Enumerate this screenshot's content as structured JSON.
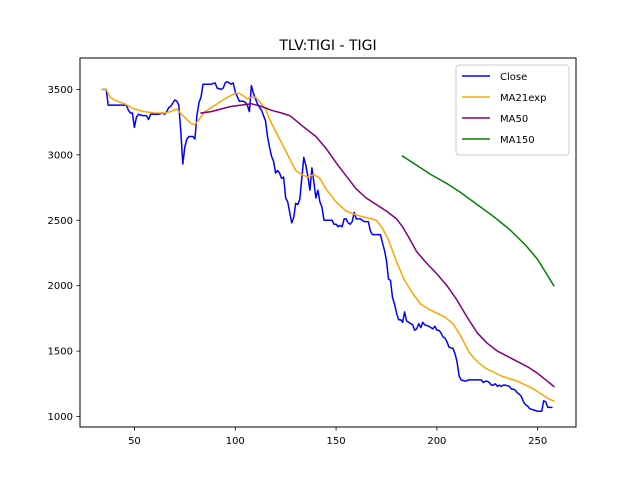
{
  "chart_data": {
    "type": "line",
    "title": "TLV:TIGI - TIGI",
    "xlabel": "",
    "ylabel": "",
    "xlim": [
      23,
      269
    ],
    "ylim": [
      920,
      3740
    ],
    "xticks": [
      50,
      100,
      150,
      200,
      250
    ],
    "yticks": [
      1000,
      1500,
      2000,
      2500,
      3000,
      3500
    ],
    "grid": false,
    "legend_position": "top-right",
    "series": [
      {
        "name": "Close",
        "color": "#0000ff",
        "points": [
          [
            34,
            3500
          ],
          [
            36,
            3500
          ],
          [
            37,
            3380
          ],
          [
            40,
            3380
          ],
          [
            42,
            3380
          ],
          [
            44,
            3380
          ],
          [
            46,
            3380
          ],
          [
            47,
            3340
          ],
          [
            48,
            3320
          ],
          [
            49,
            3320
          ],
          [
            50,
            3210
          ],
          [
            51,
            3290
          ],
          [
            52,
            3310
          ],
          [
            54,
            3300
          ],
          [
            55,
            3300
          ],
          [
            56,
            3300
          ],
          [
            57,
            3270
          ],
          [
            58,
            3310
          ],
          [
            60,
            3310
          ],
          [
            62,
            3310
          ],
          [
            64,
            3320
          ],
          [
            65,
            3310
          ],
          [
            66,
            3330
          ],
          [
            67,
            3360
          ],
          [
            68,
            3370
          ],
          [
            70,
            3420
          ],
          [
            71,
            3410
          ],
          [
            72,
            3380
          ],
          [
            73,
            3180
          ],
          [
            74,
            2930
          ],
          [
            75,
            3060
          ],
          [
            76,
            3120
          ],
          [
            77,
            3140
          ],
          [
            79,
            3140
          ],
          [
            80,
            3120
          ],
          [
            81,
            3300
          ],
          [
            82,
            3400
          ],
          [
            83,
            3440
          ],
          [
            84,
            3540
          ],
          [
            86,
            3540
          ],
          [
            88,
            3540
          ],
          [
            90,
            3550
          ],
          [
            91,
            3510
          ],
          [
            93,
            3500
          ],
          [
            94,
            3510
          ],
          [
            95,
            3550
          ],
          [
            96,
            3560
          ],
          [
            98,
            3540
          ],
          [
            99,
            3550
          ],
          [
            100,
            3480
          ],
          [
            102,
            3410
          ],
          [
            104,
            3410
          ],
          [
            105,
            3400
          ],
          [
            106,
            3380
          ],
          [
            107,
            3330
          ],
          [
            108,
            3530
          ],
          [
            109,
            3470
          ],
          [
            110,
            3430
          ],
          [
            111,
            3390
          ],
          [
            113,
            3340
          ],
          [
            115,
            3260
          ],
          [
            116,
            3140
          ],
          [
            117,
            3060
          ],
          [
            118,
            2990
          ],
          [
            119,
            2950
          ],
          [
            120,
            2860
          ],
          [
            121,
            2880
          ],
          [
            122,
            2860
          ],
          [
            123,
            2820
          ],
          [
            124,
            2830
          ],
          [
            125,
            2670
          ],
          [
            126,
            2640
          ],
          [
            127,
            2560
          ],
          [
            128,
            2480
          ],
          [
            129,
            2520
          ],
          [
            130,
            2630
          ],
          [
            131,
            2620
          ],
          [
            132,
            2660
          ],
          [
            133,
            2820
          ],
          [
            134,
            2980
          ],
          [
            135,
            2920
          ],
          [
            136,
            2840
          ],
          [
            137,
            2730
          ],
          [
            138,
            2900
          ],
          [
            139,
            2790
          ],
          [
            140,
            2670
          ],
          [
            141,
            2730
          ],
          [
            142,
            2640
          ],
          [
            143,
            2600
          ],
          [
            144,
            2500
          ],
          [
            146,
            2500
          ],
          [
            148,
            2500
          ],
          [
            149,
            2470
          ],
          [
            150,
            2470
          ],
          [
            151,
            2450
          ],
          [
            152,
            2460
          ],
          [
            153,
            2450
          ],
          [
            154,
            2510
          ],
          [
            155,
            2510
          ],
          [
            156,
            2480
          ],
          [
            157,
            2470
          ],
          [
            158,
            2490
          ],
          [
            159,
            2560
          ],
          [
            160,
            2510
          ],
          [
            162,
            2510
          ],
          [
            164,
            2490
          ],
          [
            166,
            2490
          ],
          [
            167,
            2420
          ],
          [
            168,
            2390
          ],
          [
            170,
            2390
          ],
          [
            172,
            2390
          ],
          [
            173,
            2330
          ],
          [
            174,
            2270
          ],
          [
            175,
            2190
          ],
          [
            176,
            2050
          ],
          [
            177,
            2040
          ],
          [
            178,
            1910
          ],
          [
            179,
            1860
          ],
          [
            180,
            1790
          ],
          [
            181,
            1740
          ],
          [
            182,
            1740
          ],
          [
            183,
            1720
          ],
          [
            184,
            1800
          ],
          [
            185,
            1730
          ],
          [
            186,
            1720
          ],
          [
            188,
            1700
          ],
          [
            189,
            1660
          ],
          [
            190,
            1670
          ],
          [
            191,
            1710
          ],
          [
            192,
            1680
          ],
          [
            193,
            1720
          ],
          [
            194,
            1700
          ],
          [
            196,
            1690
          ],
          [
            198,
            1670
          ],
          [
            199,
            1690
          ],
          [
            200,
            1660
          ],
          [
            201,
            1660
          ],
          [
            202,
            1640
          ],
          [
            203,
            1610
          ],
          [
            204,
            1600
          ],
          [
            205,
            1570
          ],
          [
            206,
            1530
          ],
          [
            208,
            1520
          ],
          [
            209,
            1480
          ],
          [
            210,
            1420
          ],
          [
            211,
            1310
          ],
          [
            212,
            1280
          ],
          [
            214,
            1270
          ],
          [
            216,
            1280
          ],
          [
            218,
            1280
          ],
          [
            220,
            1280
          ],
          [
            222,
            1280
          ],
          [
            223,
            1260
          ],
          [
            224,
            1270
          ],
          [
            225,
            1270
          ],
          [
            226,
            1260
          ],
          [
            227,
            1240
          ],
          [
            228,
            1240
          ],
          [
            229,
            1250
          ],
          [
            230,
            1230
          ],
          [
            231,
            1240
          ],
          [
            232,
            1230
          ],
          [
            233,
            1240
          ],
          [
            234,
            1240
          ],
          [
            236,
            1230
          ],
          [
            237,
            1210
          ],
          [
            238,
            1210
          ],
          [
            239,
            1200
          ],
          [
            240,
            1180
          ],
          [
            241,
            1170
          ],
          [
            242,
            1150
          ],
          [
            243,
            1110
          ],
          [
            244,
            1090
          ],
          [
            245,
            1080
          ],
          [
            246,
            1060
          ],
          [
            248,
            1050
          ],
          [
            250,
            1040
          ],
          [
            252,
            1040
          ],
          [
            253,
            1120
          ],
          [
            254,
            1110
          ],
          [
            255,
            1070
          ],
          [
            256,
            1070
          ],
          [
            257,
            1070
          ]
        ]
      },
      {
        "name": "MA21exp",
        "color": "#ffa500",
        "points": [
          [
            34,
            3500
          ],
          [
            36,
            3500
          ],
          [
            38,
            3440
          ],
          [
            40,
            3420
          ],
          [
            45,
            3390
          ],
          [
            50,
            3350
          ],
          [
            55,
            3330
          ],
          [
            60,
            3320
          ],
          [
            65,
            3320
          ],
          [
            68,
            3330
          ],
          [
            71,
            3350
          ],
          [
            74,
            3300
          ],
          [
            76,
            3270
          ],
          [
            78,
            3240
          ],
          [
            80,
            3230
          ],
          [
            82,
            3270
          ],
          [
            85,
            3330
          ],
          [
            90,
            3380
          ],
          [
            95,
            3430
          ],
          [
            100,
            3470
          ],
          [
            102,
            3470
          ],
          [
            104,
            3450
          ],
          [
            106,
            3430
          ],
          [
            108,
            3440
          ],
          [
            110,
            3440
          ],
          [
            112,
            3410
          ],
          [
            115,
            3350
          ],
          [
            118,
            3240
          ],
          [
            122,
            3120
          ],
          [
            126,
            3000
          ],
          [
            130,
            2880
          ],
          [
            133,
            2850
          ],
          [
            136,
            2830
          ],
          [
            139,
            2850
          ],
          [
            142,
            2820
          ],
          [
            145,
            2740
          ],
          [
            150,
            2640
          ],
          [
            155,
            2570
          ],
          [
            160,
            2540
          ],
          [
            165,
            2520
          ],
          [
            168,
            2510
          ],
          [
            170,
            2500
          ],
          [
            173,
            2440
          ],
          [
            176,
            2350
          ],
          [
            180,
            2180
          ],
          [
            184,
            2040
          ],
          [
            188,
            1940
          ],
          [
            192,
            1860
          ],
          [
            196,
            1820
          ],
          [
            200,
            1790
          ],
          [
            204,
            1760
          ],
          [
            208,
            1710
          ],
          [
            212,
            1610
          ],
          [
            216,
            1490
          ],
          [
            220,
            1420
          ],
          [
            224,
            1370
          ],
          [
            228,
            1340
          ],
          [
            232,
            1310
          ],
          [
            236,
            1290
          ],
          [
            240,
            1270
          ],
          [
            244,
            1240
          ],
          [
            248,
            1210
          ],
          [
            252,
            1170
          ],
          [
            256,
            1130
          ],
          [
            258,
            1120
          ]
        ]
      },
      {
        "name": "MA50",
        "color": "#800080",
        "points": [
          [
            83,
            3320
          ],
          [
            88,
            3330
          ],
          [
            93,
            3350
          ],
          [
            98,
            3370
          ],
          [
            103,
            3380
          ],
          [
            108,
            3390
          ],
          [
            113,
            3370
          ],
          [
            118,
            3340
          ],
          [
            123,
            3320
          ],
          [
            127,
            3300
          ],
          [
            131,
            3250
          ],
          [
            135,
            3200
          ],
          [
            140,
            3140
          ],
          [
            145,
            3050
          ],
          [
            150,
            2940
          ],
          [
            155,
            2840
          ],
          [
            160,
            2740
          ],
          [
            165,
            2670
          ],
          [
            170,
            2620
          ],
          [
            175,
            2570
          ],
          [
            180,
            2510
          ],
          [
            183,
            2450
          ],
          [
            186,
            2370
          ],
          [
            190,
            2260
          ],
          [
            195,
            2170
          ],
          [
            200,
            2090
          ],
          [
            205,
            2000
          ],
          [
            210,
            1890
          ],
          [
            215,
            1760
          ],
          [
            220,
            1640
          ],
          [
            225,
            1560
          ],
          [
            230,
            1500
          ],
          [
            235,
            1460
          ],
          [
            240,
            1420
          ],
          [
            245,
            1380
          ],
          [
            250,
            1330
          ],
          [
            254,
            1280
          ],
          [
            258,
            1230
          ]
        ]
      },
      {
        "name": "MA150",
        "color": "#008000",
        "points": [
          [
            183,
            2990
          ],
          [
            190,
            2920
          ],
          [
            197,
            2850
          ],
          [
            205,
            2780
          ],
          [
            212,
            2710
          ],
          [
            220,
            2620
          ],
          [
            228,
            2530
          ],
          [
            236,
            2430
          ],
          [
            244,
            2310
          ],
          [
            250,
            2200
          ],
          [
            254,
            2100
          ],
          [
            258,
            2000
          ]
        ]
      }
    ]
  }
}
